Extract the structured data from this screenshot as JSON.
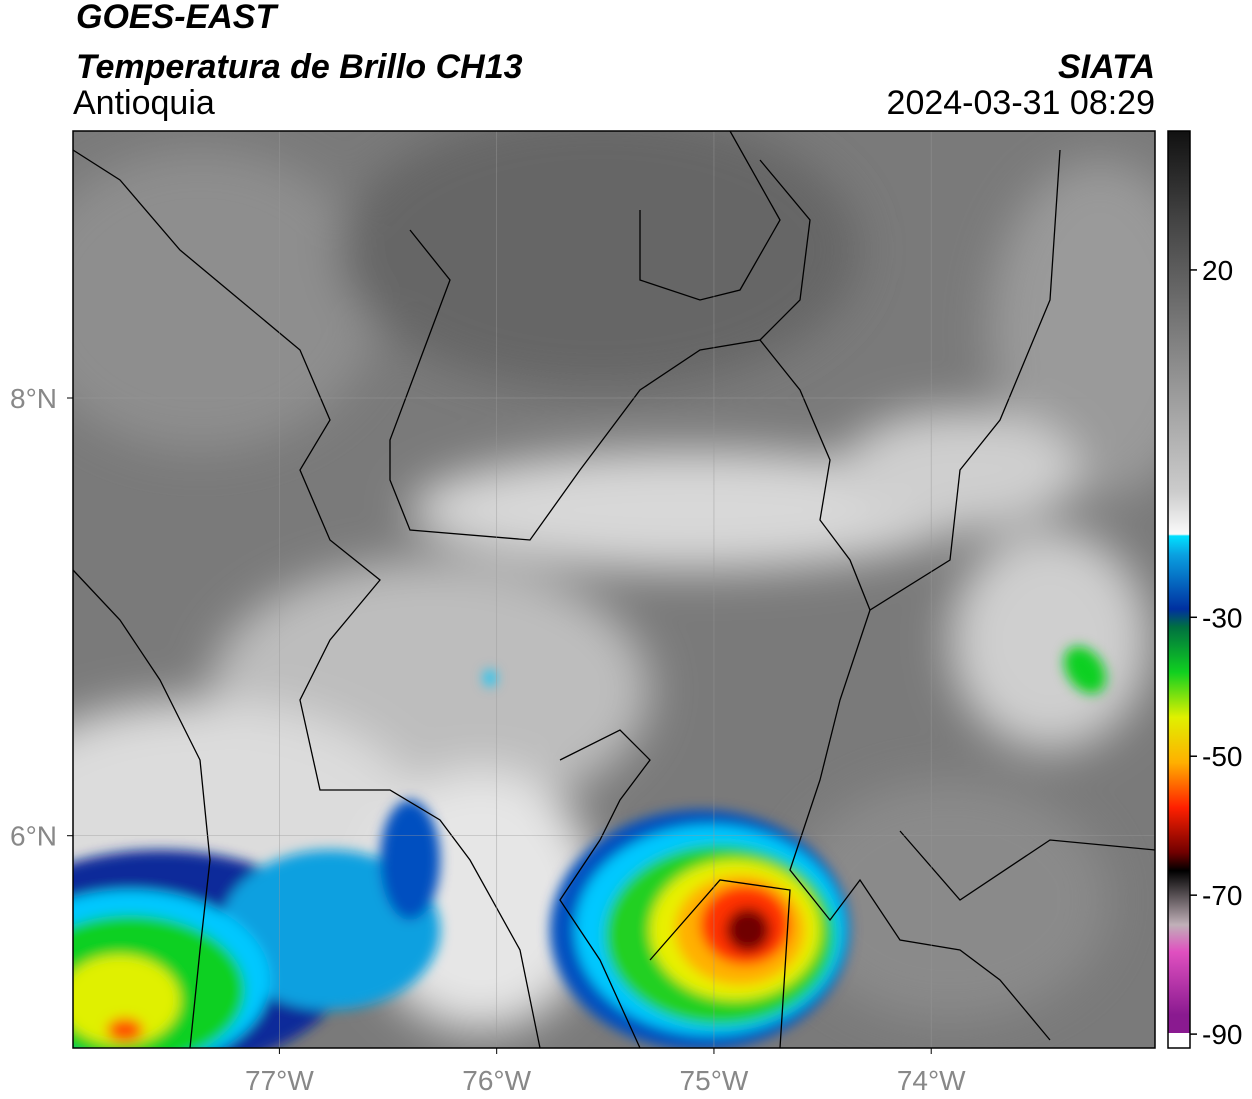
{
  "header": {
    "title": "GOES-EAST",
    "subtitle": "Temperatura de Brillo CH13",
    "region": "Antioquia",
    "source": "SIATA",
    "datetime": "2024-03-31 08:29"
  },
  "map": {
    "xlim": [
      -77.95,
      -72.97
    ],
    "ylim": [
      5.03,
      9.22
    ],
    "xticks": [
      {
        "value": -77,
        "label": "77°W"
      },
      {
        "value": -76,
        "label": "76°W"
      },
      {
        "value": -75,
        "label": "75°W"
      },
      {
        "value": -74,
        "label": "74°W"
      }
    ],
    "yticks": [
      {
        "value": 6,
        "label": "6°N"
      },
      {
        "value": 8,
        "label": "8°N"
      }
    ]
  },
  "colorbar": {
    "lim": [
      -92,
      40
    ],
    "ticks": [
      20,
      -30,
      -50,
      -70,
      -90
    ]
  }
}
